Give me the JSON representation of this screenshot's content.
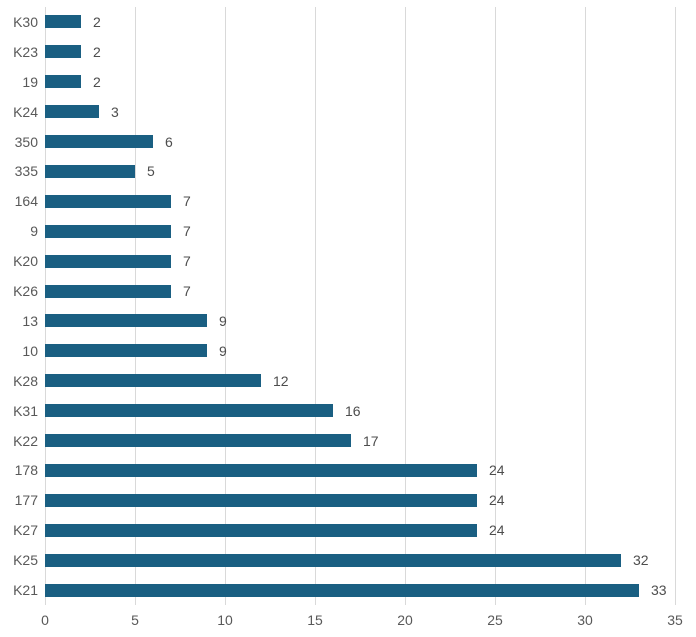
{
  "chart_data": {
    "type": "bar",
    "orientation": "horizontal",
    "title": "",
    "xlabel": "",
    "ylabel": "",
    "categories": [
      "K30",
      "K23",
      "19",
      "K24",
      "350",
      "335",
      "164",
      "9",
      "K20",
      "K26",
      "13",
      "10",
      "K28",
      "K31",
      "K22",
      "178",
      "177",
      "K27",
      "K25",
      "K21"
    ],
    "values": [
      2,
      2,
      2,
      3,
      6,
      5,
      7,
      7,
      7,
      7,
      9,
      9,
      12,
      16,
      17,
      24,
      24,
      24,
      32,
      33
    ],
    "value_labels": [
      "2",
      "2",
      "2",
      "3",
      "6",
      "5",
      "7",
      "7",
      "7",
      "7",
      "9",
      "9",
      "12",
      "16",
      "17",
      "24",
      "24",
      "24",
      "32",
      "33"
    ],
    "xlim": [
      0,
      35
    ],
    "x_ticks": [
      0,
      5,
      10,
      15,
      20,
      25,
      30,
      35
    ],
    "x_tick_labels": [
      "0",
      "5",
      "10",
      "15",
      "20",
      "25",
      "30",
      "35"
    ],
    "grid": true,
    "legend": false,
    "data_labels_shown": true,
    "colors": {
      "bar": "#1a5f82",
      "gridline": "#d9d9d9",
      "category_label": "#595959",
      "value_label": "#4d4d4d",
      "tick_label": "#595959",
      "background": "#ffffff"
    }
  }
}
